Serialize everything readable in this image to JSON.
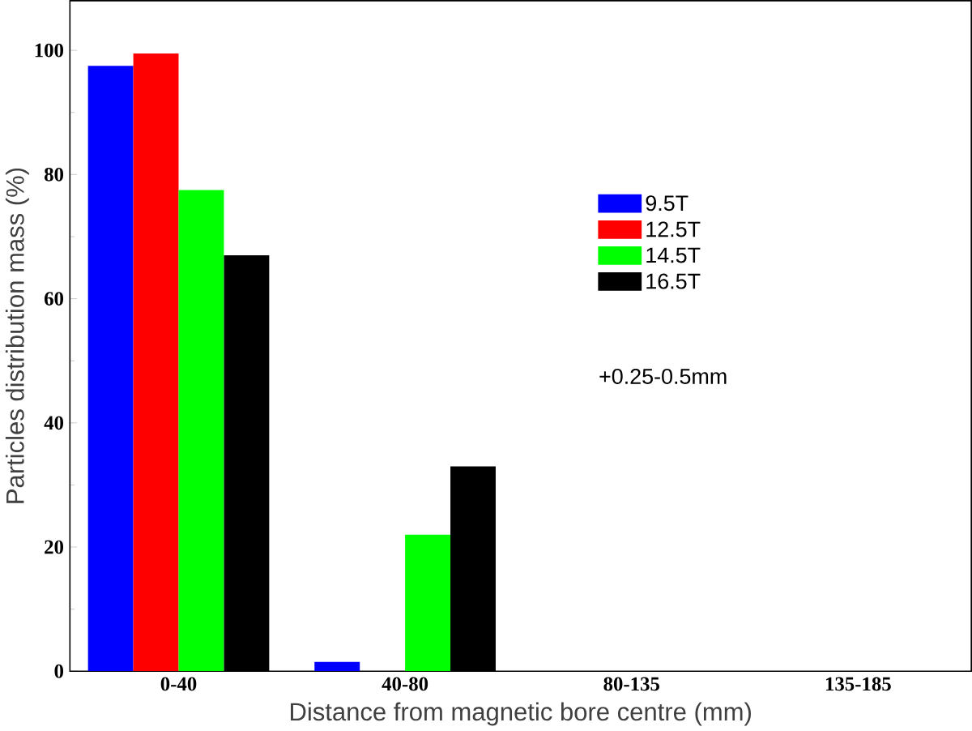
{
  "chart_data": {
    "type": "bar",
    "xlabel": "Distance  from magnetic bore centre (mm)",
    "ylabel": "Particles distribution mass (%)",
    "categories": [
      "0-40",
      "40-80",
      "80-135",
      "135-185"
    ],
    "series": [
      {
        "name": "9.5T",
        "color": "#0000ff",
        "values": [
          97.5,
          1.5,
          0,
          0
        ]
      },
      {
        "name": "12.5T",
        "color": "#ff0000",
        "values": [
          99.5,
          0,
          0,
          0
        ]
      },
      {
        "name": "14.5T",
        "color": "#00ff00",
        "values": [
          77.5,
          22,
          0,
          0
        ]
      },
      {
        "name": "16.5T",
        "color": "#000000",
        "values": [
          67,
          33,
          0,
          0
        ]
      }
    ],
    "ylim": [
      0,
      108
    ],
    "yticks": [
      0,
      20,
      40,
      60,
      80,
      100
    ],
    "grid": false,
    "legend": "right",
    "annotations": [
      "+0.25-0.5mm"
    ]
  }
}
